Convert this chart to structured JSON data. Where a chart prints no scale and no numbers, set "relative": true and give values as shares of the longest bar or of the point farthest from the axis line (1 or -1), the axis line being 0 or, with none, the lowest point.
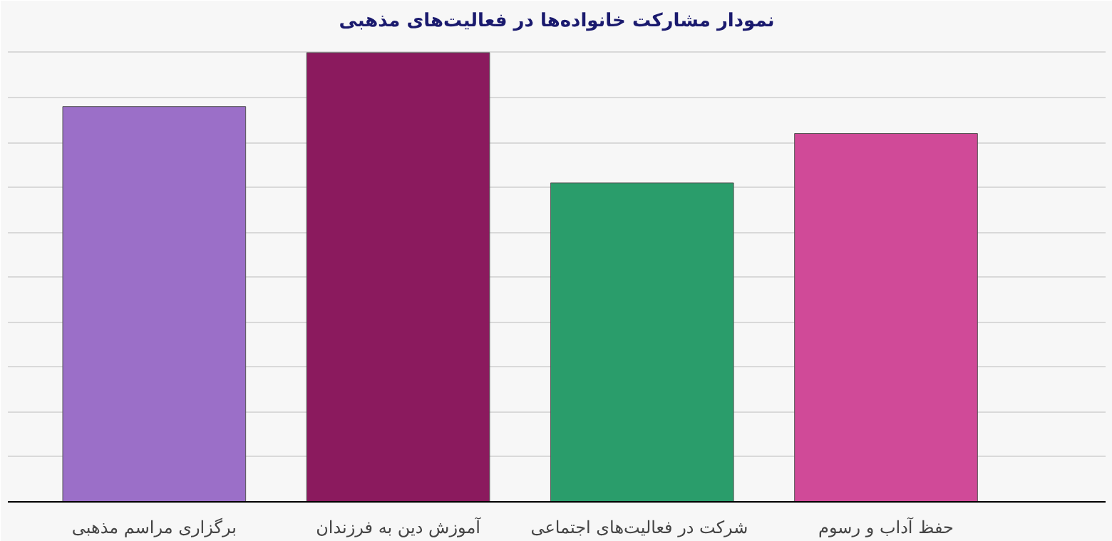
{
  "chart_data": {
    "type": "bar",
    "title": "نمودار مشارکت خانواده‌ها در فعالیت‌های مذهبی",
    "relative": true,
    "grid": "y",
    "categories": [
      "برگزاری مراسم مذهبی",
      "آموزش دین به فرزندان",
      "شرکت در فعالیت‌های  اجتماعی",
      "حفظ آداب و رسوم"
    ],
    "values": [
      0.88,
      1,
      0.71,
      0.82
    ],
    "colors": [
      "#9b6fc8",
      "#8b1a5e",
      "#2a9d6b",
      "#d04a98"
    ]
  }
}
